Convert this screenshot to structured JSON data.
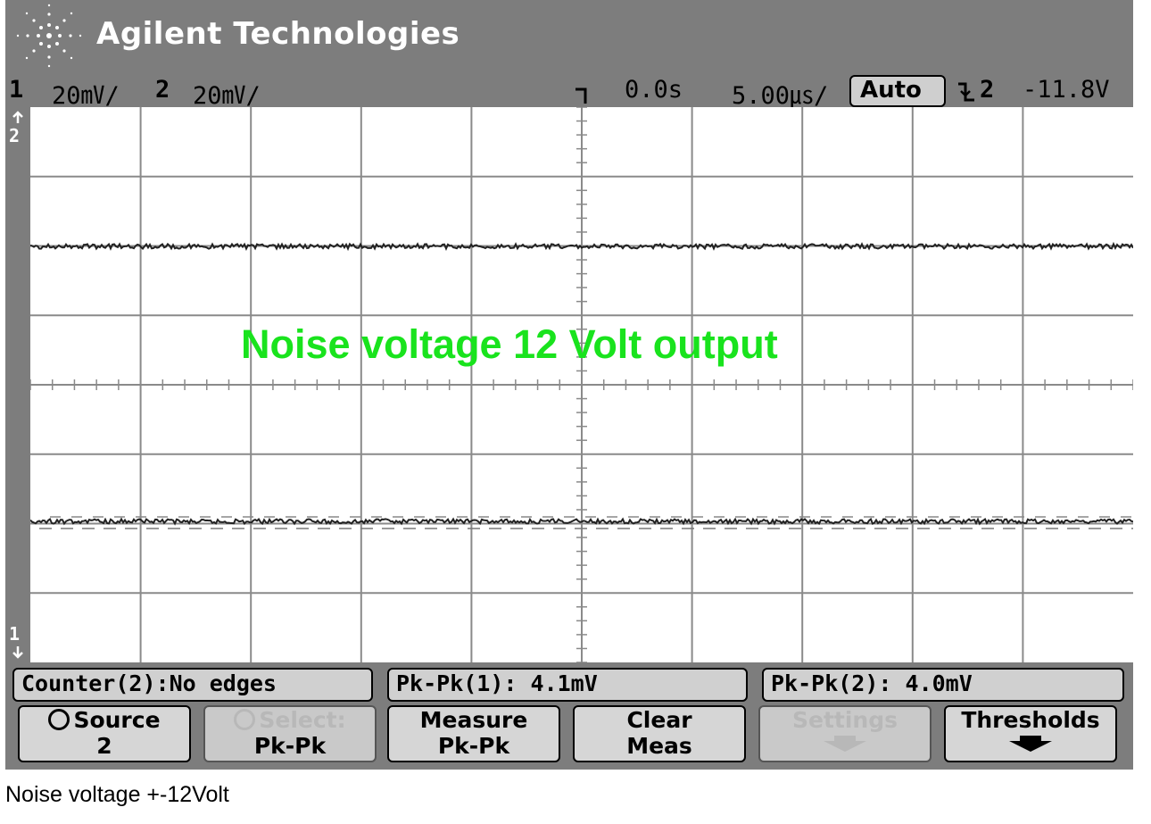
{
  "window": {
    "brand": "Agilent Technologies"
  },
  "status": {
    "ch1_num": "1",
    "ch1_scale": "20㎷/",
    "ch2_num": "2",
    "ch2_scale": "20㎷/",
    "time_delay": "0.0s",
    "time_scale": "5.00㎲/",
    "trigger_mode": "Auto",
    "trigger_source": "2",
    "trigger_level": "-11.8V"
  },
  "markers": {
    "ch2": "2",
    "ch1": "1"
  },
  "overlay_text": "Noise voltage 12 Volt output",
  "measurements": [
    {
      "label": "Counter(2):No edges"
    },
    {
      "label": "Pk-Pk(1): 4.1mV"
    },
    {
      "label": "Pk-Pk(2): 4.0mV"
    }
  ],
  "softkeys": [
    {
      "line1": "Source",
      "line2": "2",
      "enabled": true
    },
    {
      "line1": "Select:",
      "line2": "Pk-Pk",
      "enabled": false
    },
    {
      "line1": "Measure",
      "line2": "Pk-Pk",
      "enabled": true
    },
    {
      "line1": "Clear",
      "line2": "Meas",
      "enabled": true
    },
    {
      "line1": "Settings",
      "line2": "",
      "enabled": false
    },
    {
      "line1": "Thresholds",
      "line2": "",
      "enabled": true
    }
  ],
  "caption": "Noise voltage +-12Volt",
  "colors": {
    "overlay": "#19e31d",
    "frame": "#7d7d7d",
    "trace": "#222222"
  }
}
